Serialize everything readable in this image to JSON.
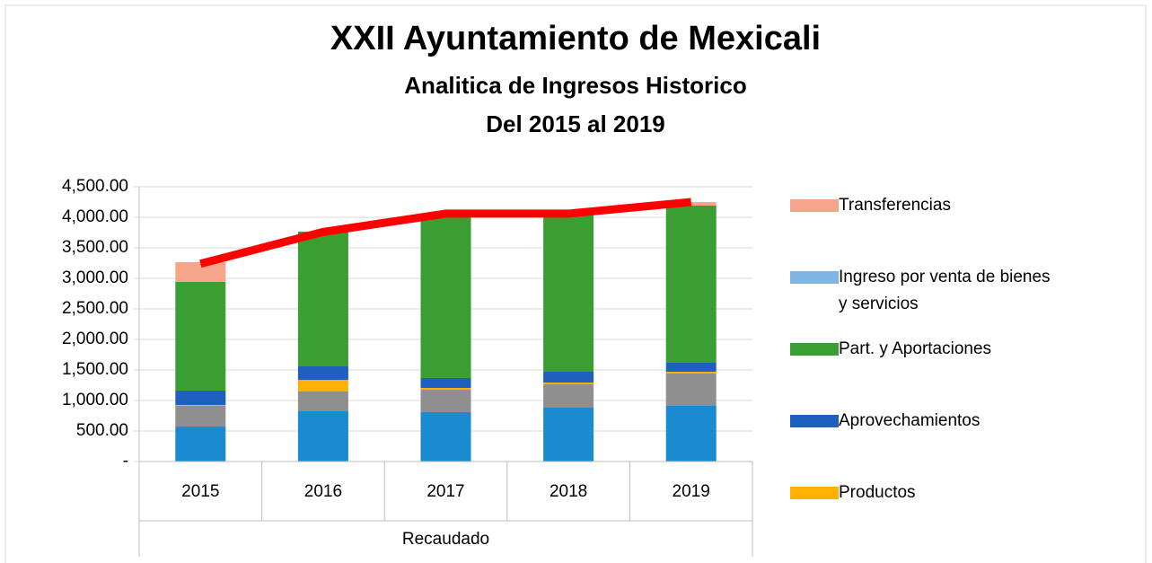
{
  "chart_data": {
    "type": "bar",
    "title": "XXII Ayuntamiento de Mexicali",
    "subtitle": [
      "Analitica de Ingresos Historico",
      "Del 2015 al 2019"
    ],
    "categories": [
      "2015",
      "2016",
      "2017",
      "2018",
      "2019"
    ],
    "group_label": "Recaudado",
    "stacked": true,
    "series": [
      {
        "color": "#1a8bd1",
        "values": [
          574,
          824,
          809,
          882,
          912
        ]
      },
      {
        "color": "#8f8f8f",
        "values": [
          338,
          323,
          367,
          383,
          529
        ]
      },
      {
        "name": "Productos",
        "color": "#ffb000",
        "values": [
          15,
          191,
          30,
          29,
          30
        ]
      },
      {
        "name": "Aprovechamientos",
        "color": "#1f5fbf",
        "values": [
          235,
          221,
          162,
          177,
          147
        ]
      },
      {
        "name": "Part. y Aportaciones",
        "color": "#3a9e32",
        "values": [
          1779,
          2206,
          2691,
          2588,
          2573
        ]
      },
      {
        "name": "Ingreso por venta de bienes y servicios",
        "color": "#7fb6e6",
        "values": [
          0,
          0,
          0,
          0,
          0
        ]
      },
      {
        "name": "Transferencias",
        "color": "#f7a58a",
        "values": [
          324,
          0,
          0,
          0,
          59
        ]
      }
    ],
    "line": {
      "color": "#ff0000",
      "values": [
        3240,
        3760,
        4060,
        4060,
        4250
      ]
    },
    "ylim": [
      0,
      4500
    ],
    "yticks": [
      {
        "value": 0,
        "label": "-"
      },
      {
        "value": 500,
        "label": "500.00"
      },
      {
        "value": 1000,
        "label": "1,000.00"
      },
      {
        "value": 1500,
        "label": "1,500.00"
      },
      {
        "value": 2000,
        "label": "2,000.00"
      },
      {
        "value": 2500,
        "label": "2,500.00"
      },
      {
        "value": 3000,
        "label": "3,000.00"
      },
      {
        "value": 3500,
        "label": "3,500.00"
      },
      {
        "value": 4000,
        "label": "4,000.00"
      },
      {
        "value": 4500,
        "label": "4,500.00"
      }
    ],
    "grid": true
  }
}
